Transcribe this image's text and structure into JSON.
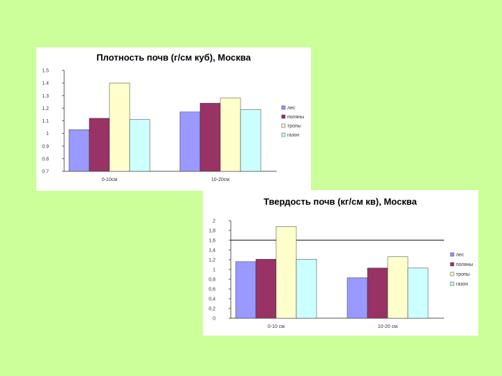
{
  "colors": {
    "background": "#ccff99",
    "series": [
      "#9999ff",
      "#993366",
      "#ffffcc",
      "#ccffff"
    ]
  },
  "chart_data": [
    {
      "type": "bar",
      "title": "Плотность почв (г/см куб), Москва",
      "categories": [
        "0-10см",
        "10-20см"
      ],
      "series": [
        {
          "name": "лес",
          "values": [
            1.03,
            1.17
          ]
        },
        {
          "name": "поляны",
          "values": [
            1.12,
            1.24
          ]
        },
        {
          "name": "тропы",
          "values": [
            1.4,
            1.28
          ]
        },
        {
          "name": "газон",
          "values": [
            1.11,
            1.19
          ]
        }
      ],
      "ylim": [
        0.7,
        1.5
      ],
      "yticks": [
        "0.7",
        "0.8",
        "0.9",
        "1",
        "1.1",
        "1.2",
        "1.3",
        "1.4",
        "1.5"
      ],
      "grid": false,
      "legend": "right"
    },
    {
      "type": "bar",
      "title": "Твердость почв (кг/см кв), Москва",
      "categories": [
        "0-10 см",
        "10-20 см"
      ],
      "series": [
        {
          "name": "лес",
          "values": [
            1.16,
            0.83
          ]
        },
        {
          "name": "поляны",
          "values": [
            1.21,
            1.03
          ]
        },
        {
          "name": "тропы",
          "values": [
            1.88,
            1.26
          ]
        },
        {
          "name": "газон",
          "values": [
            1.21,
            1.03
          ]
        }
      ],
      "ylim": [
        0,
        2
      ],
      "yticks": [
        "0",
        "0,2",
        "0,4",
        "0,6",
        "0,8",
        "1",
        "1,2",
        "1,4",
        "1,6",
        "1,8",
        "2"
      ],
      "reference_line": 1.6,
      "grid": false,
      "legend": "right"
    }
  ]
}
